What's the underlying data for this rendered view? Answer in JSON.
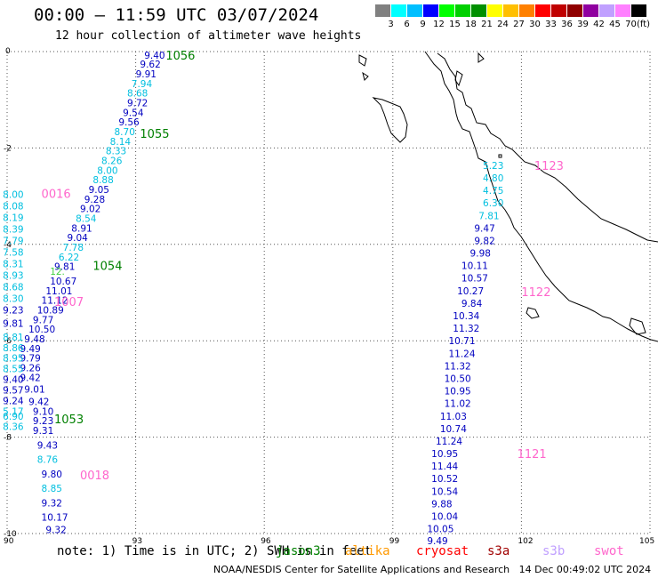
{
  "header": {
    "title": "00:00 — 11:59 UTC 03/07/2024",
    "subtitle": "12 hour collection of altimeter wave heights"
  },
  "colorbar": {
    "colors": [
      "#808080",
      "#00ffff",
      "#00bfff",
      "#0000ff",
      "#00ff00",
      "#00d000",
      "#009000",
      "#ffff00",
      "#ffbf00",
      "#ff8000",
      "#ff0000",
      "#c00000",
      "#900000",
      "#9000a0",
      "#c0a0ff",
      "#ff80ff",
      "#000000"
    ],
    "labels": [
      "",
      "3",
      "6",
      "9",
      "12",
      "15",
      "18",
      "21",
      "24",
      "27",
      "30",
      "33",
      "36",
      "39",
      "42",
      "45",
      "70"
    ],
    "unit": "(ft)"
  },
  "axes": {
    "x_ticks": [
      "90",
      "93",
      "96",
      "99",
      "102",
      "105"
    ],
    "y_ticks": [
      "0",
      "-2",
      "-4",
      "-6",
      "-8",
      "-10"
    ]
  },
  "map_data": {
    "wave_heights": [
      {
        "v": "9.40",
        "x": 93.2,
        "y": -0.07,
        "c": "#0000c0"
      },
      {
        "v": "9.62",
        "x": 93.1,
        "y": -0.26,
        "c": "#0000c0"
      },
      {
        "v": "9.91",
        "x": 93.0,
        "y": -0.46,
        "c": "#0000c0"
      },
      {
        "v": "7.94",
        "x": 92.9,
        "y": -0.66,
        "c": "#00bfdf"
      },
      {
        "v": "8.68",
        "x": 92.8,
        "y": -0.86,
        "c": "#00bfdf"
      },
      {
        "v": "9.72",
        "x": 92.8,
        "y": -1.06,
        "c": "#0000c0"
      },
      {
        "v": "9.54",
        "x": 92.7,
        "y": -1.26,
        "c": "#0000c0"
      },
      {
        "v": "9.56",
        "x": 92.6,
        "y": -1.46,
        "c": "#0000c0"
      },
      {
        "v": "8.70",
        "x": 92.5,
        "y": -1.66,
        "c": "#00bfdf"
      },
      {
        "v": "8.14",
        "x": 92.4,
        "y": -1.86,
        "c": "#00bfdf"
      },
      {
        "v": "8.33",
        "x": 92.3,
        "y": -2.06,
        "c": "#00bfdf"
      },
      {
        "v": "8.26",
        "x": 92.2,
        "y": -2.26,
        "c": "#00bfdf"
      },
      {
        "v": "8.00",
        "x": 92.1,
        "y": -2.46,
        "c": "#00bfdf"
      },
      {
        "v": "8.88",
        "x": 92.0,
        "y": -2.66,
        "c": "#00bfdf"
      },
      {
        "v": "9.05",
        "x": 91.9,
        "y": -2.86,
        "c": "#0000c0"
      },
      {
        "v": "9.28",
        "x": 91.8,
        "y": -3.06,
        "c": "#0000c0"
      },
      {
        "v": "9.02",
        "x": 91.7,
        "y": -3.26,
        "c": "#0000c0"
      },
      {
        "v": "8.54",
        "x": 91.6,
        "y": -3.46,
        "c": "#00bfdf"
      },
      {
        "v": "8.91",
        "x": 91.5,
        "y": -3.66,
        "c": "#0000c0"
      },
      {
        "v": "9.04",
        "x": 91.4,
        "y": -3.86,
        "c": "#0000c0"
      },
      {
        "v": "7.78",
        "x": 91.3,
        "y": -4.06,
        "c": "#00bfdf"
      },
      {
        "v": "6.22",
        "x": 91.2,
        "y": -4.26,
        "c": "#00bfdf"
      },
      {
        "v": "9.81",
        "x": 91.1,
        "y": -4.46,
        "c": "#0000c0"
      },
      {
        "v": "12.",
        "x": 91.0,
        "y": -4.56,
        "c": "#40d040"
      },
      {
        "v": "10.67",
        "x": 91.0,
        "y": -4.76,
        "c": "#0000c0"
      },
      {
        "v": "11.01",
        "x": 90.9,
        "y": -4.96,
        "c": "#0000c0"
      },
      {
        "v": "11.12",
        "x": 90.8,
        "y": -5.16,
        "c": "#0000c0"
      },
      {
        "v": "10.89",
        "x": 90.7,
        "y": -5.36,
        "c": "#0000c0"
      },
      {
        "v": "9.77",
        "x": 90.6,
        "y": -5.56,
        "c": "#0000c0"
      },
      {
        "v": "10.50",
        "x": 90.5,
        "y": -5.76,
        "c": "#0000c0"
      },
      {
        "v": "9.48",
        "x": 90.4,
        "y": -5.96,
        "c": "#0000c0"
      },
      {
        "v": "9.49",
        "x": 90.3,
        "y": -6.16,
        "c": "#0000c0"
      },
      {
        "v": "9.79",
        "x": 90.3,
        "y": -6.36,
        "c": "#0000c0"
      },
      {
        "v": "9.26",
        "x": 90.3,
        "y": -6.56,
        "c": "#0000c0"
      },
      {
        "v": "9.42",
        "x": 90.3,
        "y": -6.76,
        "c": "#0000c0"
      },
      {
        "v": "9.01",
        "x": 90.4,
        "y": -7.0,
        "c": "#0000c0"
      },
      {
        "v": "9.42",
        "x": 90.5,
        "y": -7.26,
        "c": "#0000c0"
      },
      {
        "v": "9.10",
        "x": 90.6,
        "y": -7.46,
        "c": "#0000c0"
      },
      {
        "v": "9.23",
        "x": 90.6,
        "y": -7.66,
        "c": "#0000c0"
      },
      {
        "v": "9.31",
        "x": 90.6,
        "y": -7.86,
        "c": "#0000c0"
      },
      {
        "v": "9.43",
        "x": 90.7,
        "y": -8.16,
        "c": "#0000c0"
      },
      {
        "v": "8.76",
        "x": 90.7,
        "y": -8.46,
        "c": "#00bfdf"
      },
      {
        "v": "9.80",
        "x": 90.8,
        "y": -8.76,
        "c": "#0000c0"
      },
      {
        "v": "8.85",
        "x": 90.8,
        "y": -9.06,
        "c": "#00bfdf"
      },
      {
        "v": "9.32",
        "x": 90.8,
        "y": -9.36,
        "c": "#0000c0"
      },
      {
        "v": "10.17",
        "x": 90.8,
        "y": -9.66,
        "c": "#0000c0"
      },
      {
        "v": "9.32",
        "x": 90.9,
        "y": -9.92,
        "c": "#0000c0"
      },
      {
        "v": "8.00",
        "x": 89.9,
        "y": -2.96,
        "c": "#00bfdf"
      },
      {
        "v": "8.08",
        "x": 89.9,
        "y": -3.2,
        "c": "#00bfdf"
      },
      {
        "v": "8.19",
        "x": 89.9,
        "y": -3.44,
        "c": "#00bfdf"
      },
      {
        "v": "8.39",
        "x": 89.9,
        "y": -3.68,
        "c": "#00bfdf"
      },
      {
        "v": "7.79",
        "x": 89.9,
        "y": -3.92,
        "c": "#00bfdf"
      },
      {
        "v": "7.58",
        "x": 89.9,
        "y": -4.16,
        "c": "#00bfdf"
      },
      {
        "v": "8.31",
        "x": 89.9,
        "y": -4.4,
        "c": "#00bfdf"
      },
      {
        "v": "8.93",
        "x": 89.9,
        "y": -4.64,
        "c": "#00bfdf"
      },
      {
        "v": "8.68",
        "x": 89.9,
        "y": -4.88,
        "c": "#00bfdf"
      },
      {
        "v": "8.30",
        "x": 89.9,
        "y": -5.12,
        "c": "#00bfdf"
      },
      {
        "v": "9.23",
        "x": 89.9,
        "y": -5.36,
        "c": "#0000c0"
      },
      {
        "v": "9.81",
        "x": 89.9,
        "y": -5.64,
        "c": "#0000c0"
      },
      {
        "v": "8.81",
        "x": 89.9,
        "y": -5.92,
        "c": "#00bfdf"
      },
      {
        "v": "8.86",
        "x": 89.9,
        "y": -6.14,
        "c": "#00bfdf"
      },
      {
        "v": "8.95",
        "x": 89.9,
        "y": -6.36,
        "c": "#00bfdf"
      },
      {
        "v": "8.55",
        "x": 89.9,
        "y": -6.58,
        "c": "#00bfdf"
      },
      {
        "v": "9.40",
        "x": 89.9,
        "y": -6.8,
        "c": "#0000c0"
      },
      {
        "v": "9.57",
        "x": 89.9,
        "y": -7.02,
        "c": "#0000c0"
      },
      {
        "v": "9.24",
        "x": 89.9,
        "y": -7.24,
        "c": "#0000c0"
      },
      {
        "v": "5.17",
        "x": 89.9,
        "y": -7.46,
        "c": "#00bfdf"
      },
      {
        "v": "6.90",
        "x": 89.9,
        "y": -7.56,
        "c": "#00bfdf"
      },
      {
        "v": "8.36",
        "x": 89.9,
        "y": -7.78,
        "c": "#00bfdf"
      },
      {
        "v": "5.23",
        "x": 101.1,
        "y": -2.36,
        "c": "#00bfdf"
      },
      {
        "v": "4.80",
        "x": 101.1,
        "y": -2.62,
        "c": "#00bfdf"
      },
      {
        "v": "4.75",
        "x": 101.1,
        "y": -2.88,
        "c": "#00bfdf"
      },
      {
        "v": "6.30",
        "x": 101.1,
        "y": -3.14,
        "c": "#00bfdf"
      },
      {
        "v": "7.81",
        "x": 101.0,
        "y": -3.4,
        "c": "#00bfdf"
      },
      {
        "v": "9.47",
        "x": 100.9,
        "y": -3.66,
        "c": "#0000c0"
      },
      {
        "v": "9.82",
        "x": 100.9,
        "y": -3.92,
        "c": "#0000c0"
      },
      {
        "v": "9.98",
        "x": 100.8,
        "y": -4.18,
        "c": "#0000c0"
      },
      {
        "v": "10.11",
        "x": 100.6,
        "y": -4.44,
        "c": "#0000c0"
      },
      {
        "v": "10.57",
        "x": 100.6,
        "y": -4.7,
        "c": "#0000c0"
      },
      {
        "v": "10.27",
        "x": 100.5,
        "y": -4.96,
        "c": "#0000c0"
      },
      {
        "v": "9.84",
        "x": 100.6,
        "y": -5.22,
        "c": "#0000c0"
      },
      {
        "v": "10.34",
        "x": 100.4,
        "y": -5.48,
        "c": "#0000c0"
      },
      {
        "v": "11.32",
        "x": 100.4,
        "y": -5.74,
        "c": "#0000c0"
      },
      {
        "v": "10.71",
        "x": 100.3,
        "y": -6.0,
        "c": "#0000c0"
      },
      {
        "v": "11.24",
        "x": 100.3,
        "y": -6.26,
        "c": "#0000c0"
      },
      {
        "v": "11.32",
        "x": 100.2,
        "y": -6.52,
        "c": "#0000c0"
      },
      {
        "v": "10.50",
        "x": 100.2,
        "y": -6.78,
        "c": "#0000c0"
      },
      {
        "v": "10.95",
        "x": 100.2,
        "y": -7.04,
        "c": "#0000c0"
      },
      {
        "v": "11.02",
        "x": 100.2,
        "y": -7.3,
        "c": "#0000c0"
      },
      {
        "v": "11.03",
        "x": 100.1,
        "y": -7.56,
        "c": "#0000c0"
      },
      {
        "v": "10.74",
        "x": 100.1,
        "y": -7.82,
        "c": "#0000c0"
      },
      {
        "v": "11.24",
        "x": 100.0,
        "y": -8.08,
        "c": "#0000c0"
      },
      {
        "v": "10.95",
        "x": 99.9,
        "y": -8.34,
        "c": "#0000c0"
      },
      {
        "v": "11.44",
        "x": 99.9,
        "y": -8.6,
        "c": "#0000c0"
      },
      {
        "v": "10.52",
        "x": 99.9,
        "y": -8.86,
        "c": "#0000c0"
      },
      {
        "v": "10.54",
        "x": 99.9,
        "y": -9.12,
        "c": "#0000c0"
      },
      {
        "v": "9.88",
        "x": 99.9,
        "y": -9.38,
        "c": "#0000c0"
      },
      {
        "v": "10.04",
        "x": 99.9,
        "y": -9.64,
        "c": "#0000c0"
      },
      {
        "v": "10.05",
        "x": 99.8,
        "y": -9.9,
        "c": "#0000c0"
      },
      {
        "v": "9.49",
        "x": 99.8,
        "y": -10.15,
        "c": "#0000c0"
      }
    ],
    "pass_labels": [
      {
        "t": "1056",
        "x": 93.7,
        "y": -0.09,
        "c": "#008000"
      },
      {
        "t": "1055",
        "x": 93.1,
        "y": -1.72,
        "c": "#008000"
      },
      {
        "t": "1054",
        "x": 92.0,
        "y": -4.46,
        "c": "#008000"
      },
      {
        "t": "1053",
        "x": 91.1,
        "y": -7.64,
        "c": "#008000"
      },
      {
        "t": "0016",
        "x": 90.8,
        "y": -2.96,
        "c": "#ff66cc"
      },
      {
        "t": "1007",
        "x": 91.1,
        "y": -5.2,
        "c": "#ff66cc"
      },
      {
        "t": "0018",
        "x": 91.7,
        "y": -8.8,
        "c": "#ff66cc"
      },
      {
        "t": "1123",
        "x": 102.3,
        "y": -2.38,
        "c": "#ff66cc"
      },
      {
        "t": "1122",
        "x": 102.0,
        "y": -5.0,
        "c": "#ff66cc"
      },
      {
        "t": "1121",
        "x": 101.9,
        "y": -8.36,
        "c": "#ff66cc"
      }
    ]
  },
  "footer": {
    "note": "note: 1) Time is in UTC; 2) SWH is in feet",
    "legend": [
      {
        "label": "jason3",
        "color": "#008000"
      },
      {
        "label": "altika",
        "color": "#ff9900"
      },
      {
        "label": "cryosat",
        "color": "#ff0000"
      },
      {
        "label": "s3a",
        "color": "#a00000"
      },
      {
        "label": "s3b",
        "color": "#c0a0ff"
      },
      {
        "label": "swot",
        "color": "#ff66cc"
      }
    ],
    "credit": "NOAA/NESDIS Center for Satellite Applications and Research   14 Dec 00:49:02 UTC 2024"
  }
}
